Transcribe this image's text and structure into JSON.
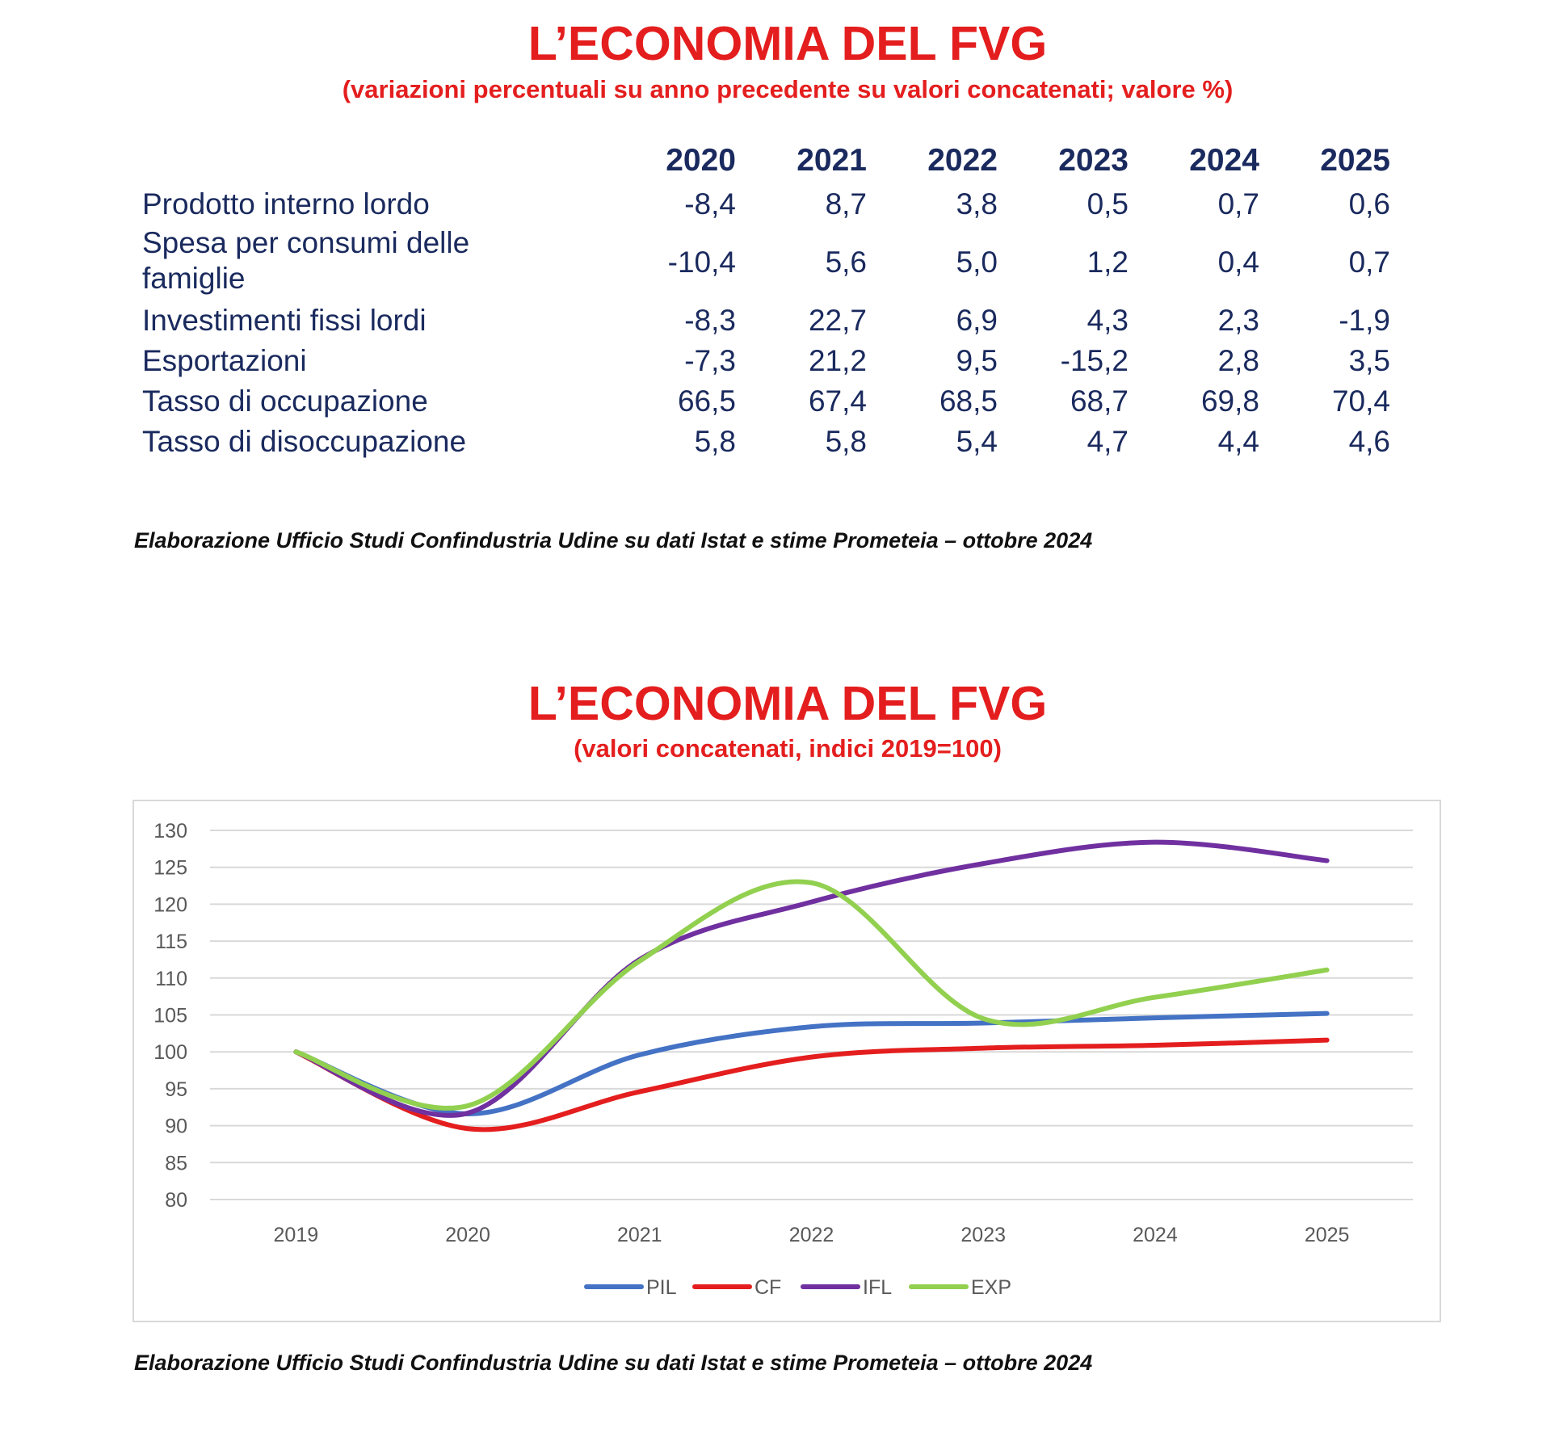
{
  "table_section": {
    "title": "L’ECONOMIA DEL FVG",
    "subtitle": "(variazioni percentuali su anno precedente su valori concatenati; valore %)",
    "years": [
      "2020",
      "2021",
      "2022",
      "2023",
      "2024",
      "2025"
    ],
    "rows": [
      {
        "label_lines": [
          "Prodotto interno lordo"
        ],
        "values": [
          "-8,4",
          "8,7",
          "3,8",
          "0,5",
          "0,7",
          "0,6"
        ]
      },
      {
        "label_lines": [
          "Spesa per consumi delle",
          "famiglie"
        ],
        "values": [
          "-10,4",
          "5,6",
          "5,0",
          "1,2",
          "0,4",
          "0,7"
        ]
      },
      {
        "label_lines": [
          "Investimenti fissi lordi"
        ],
        "values": [
          "-8,3",
          "22,7",
          "6,9",
          "4,3",
          "2,3",
          "-1,9"
        ]
      },
      {
        "label_lines": [
          "Esportazioni"
        ],
        "values": [
          "-7,3",
          "21,2",
          "9,5",
          "-15,2",
          "2,8",
          "3,5"
        ]
      },
      {
        "label_lines": [
          "Tasso di occupazione"
        ],
        "values": [
          "66,5",
          "67,4",
          "68,5",
          "68,7",
          "69,8",
          "70,4"
        ]
      },
      {
        "label_lines": [
          "Tasso di disoccupazione"
        ],
        "values": [
          "5,8",
          "5,8",
          "5,4",
          "4,7",
          "4,4",
          "4,6"
        ]
      }
    ],
    "source": "Elaborazione Ufficio Studi Confindustria Udine su dati Istat e stime Prometeia – ottobre 2024"
  },
  "chart_section": {
    "title": "L’ECONOMIA DEL FVG",
    "subtitle": "(valori concatenati, indici 2019=100)",
    "source": "Elaborazione Ufficio Studi Confindustria Udine su dati Istat e stime Prometeia – ottobre 2024"
  },
  "chart_data": {
    "type": "line",
    "title": "L’ECONOMIA DEL FVG",
    "subtitle": "(valori concatenati, indici 2019=100)",
    "x": [
      "2019",
      "2020",
      "2021",
      "2022",
      "2023",
      "2024",
      "2025"
    ],
    "ylim": [
      80,
      130
    ],
    "yticks": [
      80,
      85,
      90,
      95,
      100,
      105,
      110,
      115,
      120,
      125,
      130
    ],
    "grid": true,
    "smooth": true,
    "legend_position": "bottom",
    "series": [
      {
        "name": "PIL",
        "color": "#4472c4",
        "values": [
          100,
          91.6,
          99.6,
          103.4,
          103.9,
          104.6,
          105.2
        ]
      },
      {
        "name": "CF",
        "color": "#e41e1e",
        "values": [
          100,
          89.6,
          94.6,
          99.3,
          100.5,
          100.9,
          101.6
        ]
      },
      {
        "name": "IFL",
        "color": "#7030a0",
        "values": [
          100,
          91.7,
          112.5,
          120.3,
          125.5,
          128.4,
          125.9
        ]
      },
      {
        "name": "EXP",
        "color": "#92d050",
        "values": [
          100,
          92.7,
          112.3,
          122.9,
          104.5,
          107.4,
          111.1
        ]
      }
    ]
  }
}
